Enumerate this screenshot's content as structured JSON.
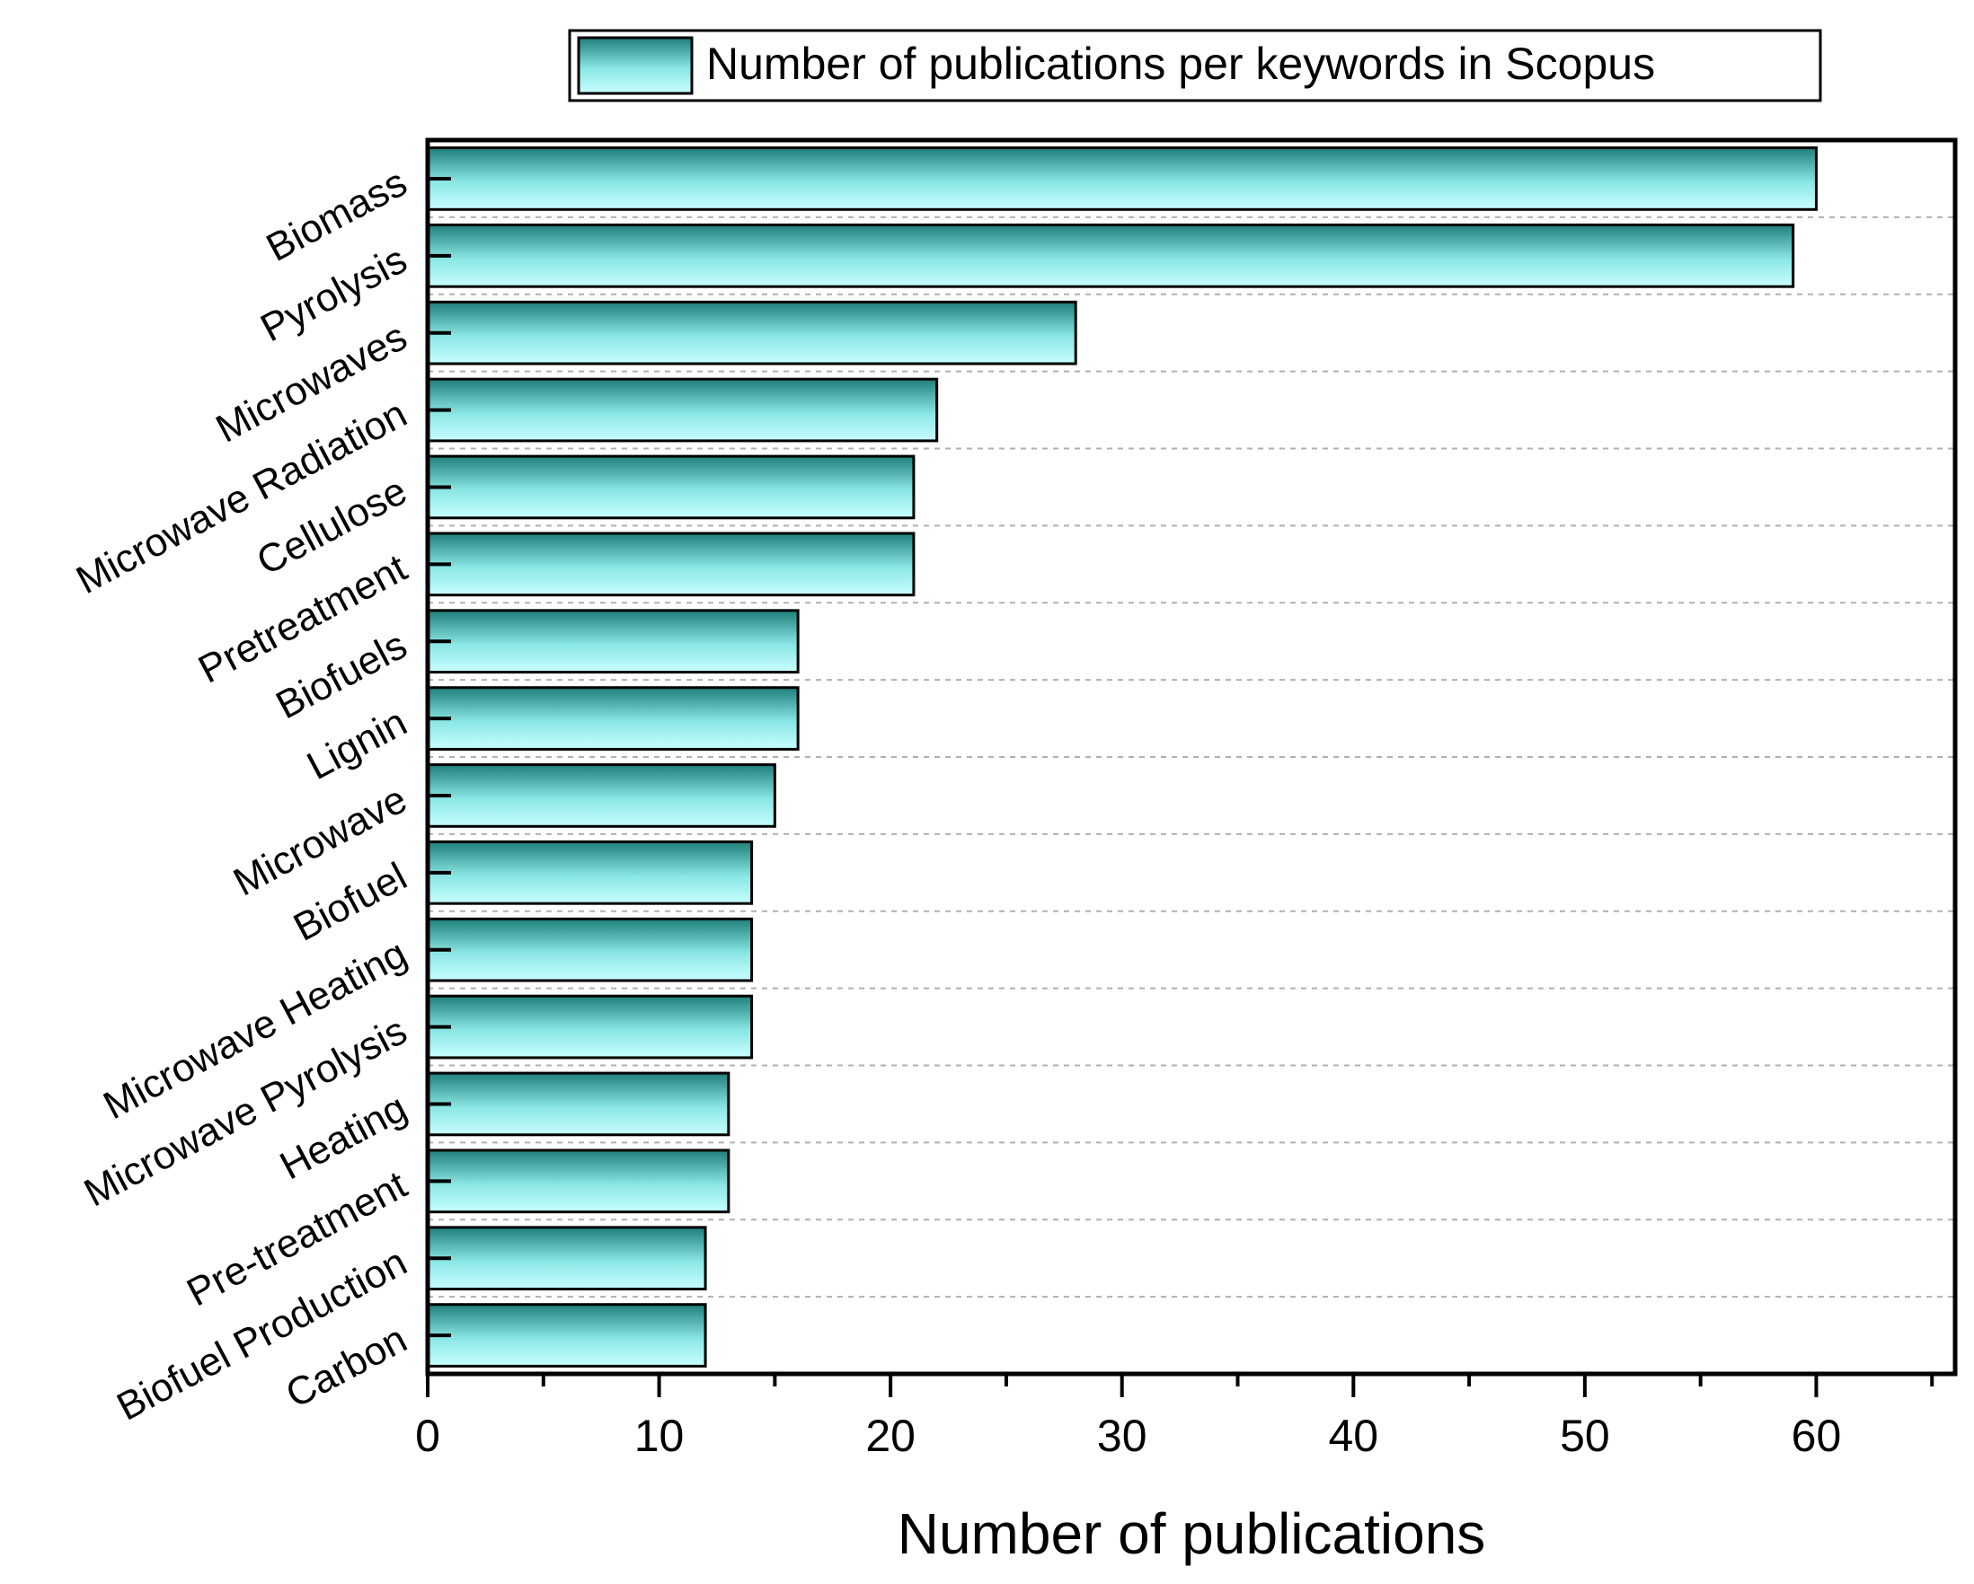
{
  "chart_data": {
    "type": "bar",
    "orientation": "horizontal",
    "categories": [
      "Biomass",
      "Pyrolysis",
      "Microwaves",
      "Microwave Radiation",
      "Cellulose",
      "Pretreatment",
      "Biofuels",
      "Lignin",
      "Microwave",
      "Biofuel",
      "Microwave Heating",
      "Microwave Pyrolysis",
      "Heating",
      "Pre-treatment",
      "Biofuel Production",
      "Carbon"
    ],
    "series": [
      {
        "name": "Number of publications per keywords in Scopus",
        "values": [
          60,
          59,
          28,
          22,
          21,
          21,
          16,
          16,
          15,
          14,
          14,
          14,
          13,
          13,
          12,
          12
        ]
      }
    ],
    "title": "",
    "xlabel": "Number of publications",
    "ylabel": "",
    "xlim": [
      0,
      66
    ],
    "xticks": [
      "0",
      "10",
      "20",
      "30",
      "40",
      "50",
      "60"
    ],
    "grid": "horizontal dashed",
    "legend_position": "top",
    "colors": {
      "bar_dark": "#1f7f7a",
      "bar_light": "#c8ffff",
      "grid": "#b0b0b0"
    }
  }
}
